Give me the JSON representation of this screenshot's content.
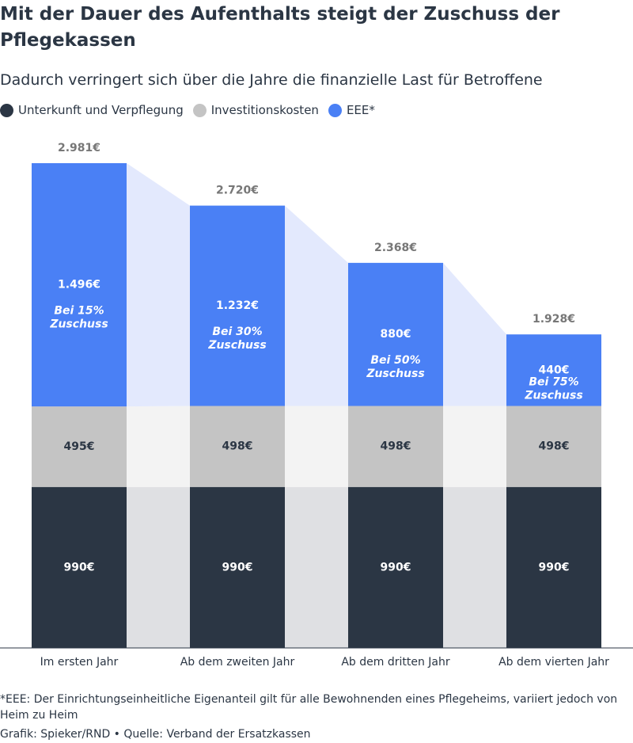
{
  "chart_data": {
    "type": "stacked_bar",
    "title": "Mit der Dauer des Aufenthalts steigt der Zuschuss der Pflegekassen",
    "subtitle": "Dadurch verringert sich über die Jahre die finanzielle Last für Betroffene",
    "categories": [
      "Im ersten Jahr",
      "Ab dem zweiten Jahr",
      "Ab dem dritten Jahr",
      "Ab dem vierten Jahr"
    ],
    "series": [
      {
        "name": "Unterkunft und Verpflegung",
        "color": "#2b3644",
        "values": [
          990,
          990,
          990,
          990
        ],
        "value_labels": [
          "990€",
          "990€",
          "990€",
          "990€"
        ]
      },
      {
        "name": "Investitionskosten",
        "color": "#c4c4c4",
        "values": [
          495,
          498,
          498,
          498
        ],
        "value_labels": [
          "495€",
          "498€",
          "498€",
          "498€"
        ]
      },
      {
        "name": "EEE*",
        "color": "#4a80f5",
        "values": [
          1496,
          1232,
          880,
          440
        ],
        "value_labels": [
          "1.496€",
          "1.232€",
          "880€",
          "440€"
        ],
        "annotations": [
          [
            "Bei 15%",
            "Zuschuss"
          ],
          [
            "Bei 30%",
            "Zuschuss"
          ],
          [
            "Bei 50%",
            "Zuschuss"
          ],
          [
            "Bei 75%",
            "Zuschuss"
          ]
        ]
      }
    ],
    "totals": {
      "values": [
        2981,
        2720,
        2368,
        1928
      ],
      "value_labels": [
        "2.981€",
        "2.720€",
        "2.368€",
        "1.928€"
      ]
    },
    "footnote": "*EEE: Der Einrichtungseinheitliche Eigenanteil gilt für alle Bewohnenden eines Pflegeheims, variiert jedoch von Heim zu Heim",
    "source": "Grafik: Spieker/RND • Quelle: Verband der Ersatzkassen"
  }
}
